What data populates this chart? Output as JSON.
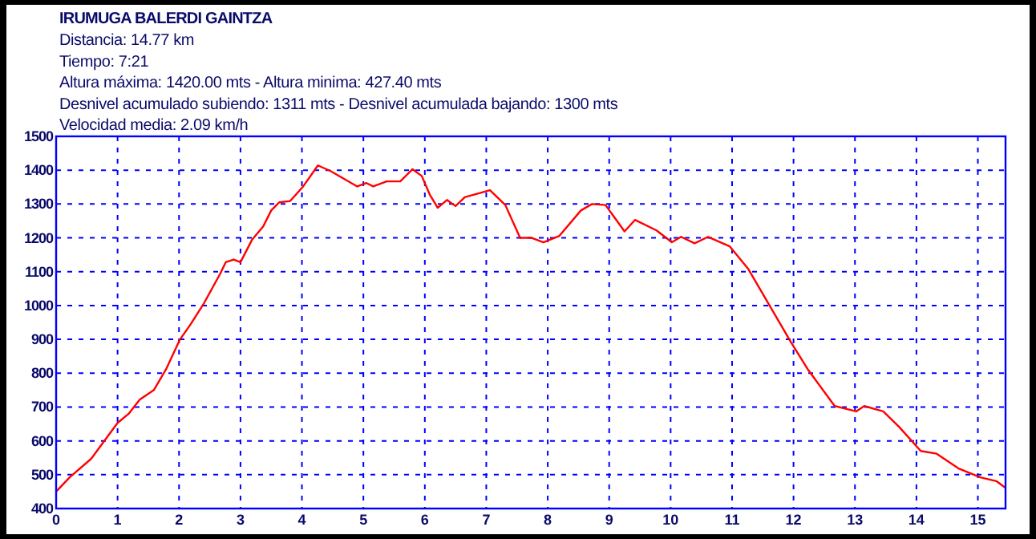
{
  "chart_data": {
    "type": "line",
    "title": "IRUMUGA BALERDI GAINTZA",
    "annotations": [
      "Distancia: 14.77 km",
      "Tiempo: 7:21",
      "Altura máxima: 1420.00 mts - Altura minima: 427.40 mts",
      "Desnivel acumulado subiendo:  1311   mts - Desnivel acumulada bajando:  1300   mts",
      "Velocidad media: 2.09 km/h"
    ],
    "xlim": [
      0,
      15.45
    ],
    "xticks": [
      0,
      1,
      2,
      3,
      4,
      5,
      6,
      7,
      8,
      9,
      10,
      11,
      12,
      13,
      14,
      15
    ],
    "ylim": [
      400,
      1500
    ],
    "yticks": [
      400,
      500,
      600,
      700,
      800,
      900,
      1000,
      1100,
      1200,
      1300,
      1400,
      1500
    ],
    "grid": true,
    "line_style": "solid",
    "marker": "none",
    "series": [
      {
        "color": "#ff0000",
        "x": [
          0,
          0.22,
          0.57,
          1.0,
          1.18,
          1.36,
          1.59,
          1.79,
          2.01,
          2.19,
          2.41,
          2.67,
          2.76,
          2.89,
          3.0,
          3.19,
          3.37,
          3.5,
          3.63,
          3.81,
          4.02,
          4.26,
          4.46,
          4.68,
          4.9,
          5.05,
          5.16,
          5.38,
          5.6,
          5.8,
          5.95,
          6.08,
          6.21,
          6.36,
          6.5,
          6.65,
          7.06,
          7.31,
          7.55,
          7.74,
          7.93,
          8.19,
          8.54,
          8.72,
          8.94,
          9.25,
          9.42,
          9.77,
          10.02,
          10.17,
          10.39,
          10.61,
          10.96,
          11.26,
          11.61,
          11.96,
          12.23,
          12.67,
          13.02,
          13.15,
          13.46,
          13.72,
          14.07,
          14.33,
          14.68,
          15.04,
          15.3,
          15.45
        ],
        "values": [
          450,
          492,
          547,
          653,
          680,
          722,
          750,
          812,
          898,
          945,
          1008,
          1094,
          1128,
          1136,
          1128,
          1195,
          1234,
          1281,
          1305,
          1309,
          1352,
          1414,
          1398,
          1375,
          1352,
          1362,
          1352,
          1367,
          1367,
          1403,
          1383,
          1328,
          1289,
          1312,
          1294,
          1320,
          1341,
          1297,
          1200,
          1200,
          1187,
          1206,
          1281,
          1300,
          1297,
          1219,
          1253,
          1222,
          1187,
          1203,
          1184,
          1203,
          1175,
          1109,
          1000,
          891,
          812,
          703,
          687,
          703,
          687,
          641,
          570,
          562,
          519,
          492,
          481,
          461
        ]
      }
    ]
  }
}
